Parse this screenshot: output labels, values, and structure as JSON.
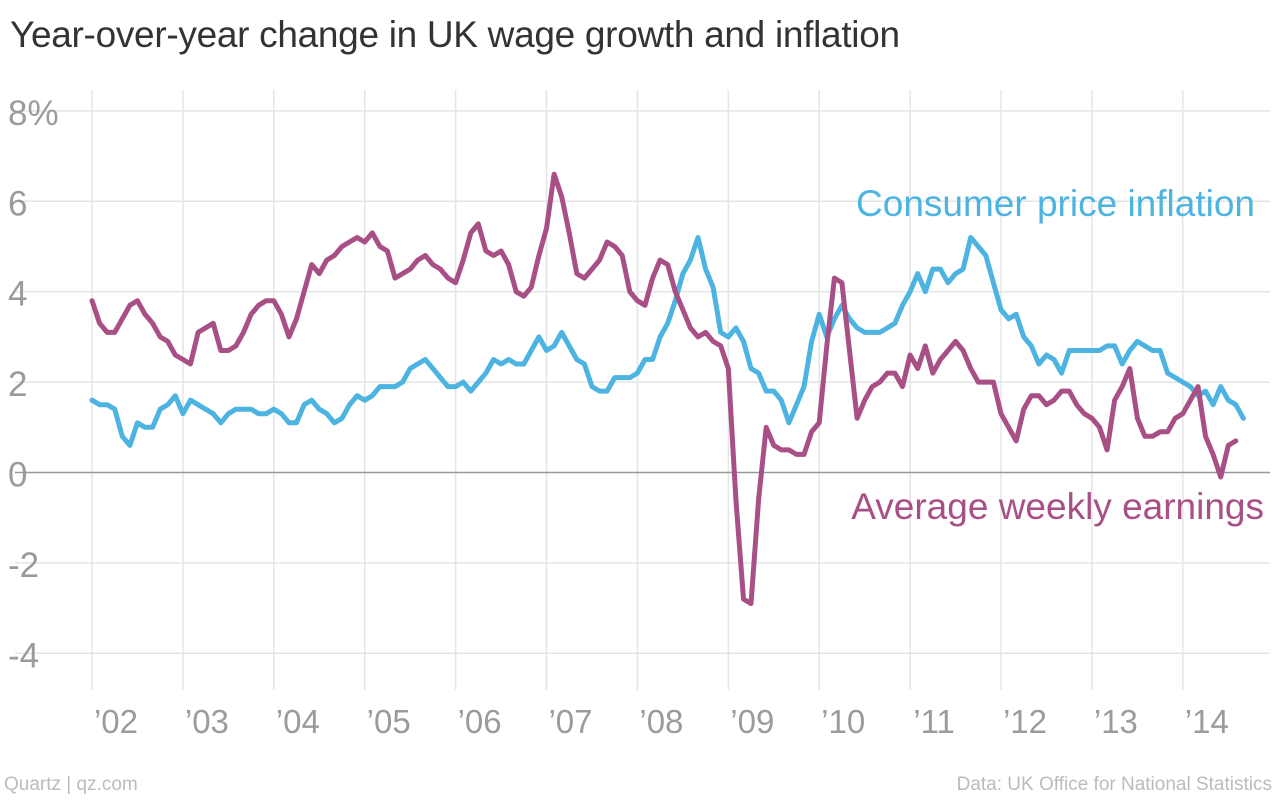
{
  "title": "Year-over-year change in UK wage growth and inflation",
  "source_left": "Quartz | qz.com",
  "source_right": "Data: UK Office for National Statistics",
  "colors": {
    "cpi": "#4db3e1",
    "awe": "#a84f86",
    "grid": "#e5e5e5",
    "zero": "#999999",
    "tick": "#9b9b9b"
  },
  "chart_data": {
    "type": "line",
    "ylim": [
      -4.5,
      8.5
    ],
    "xlim": [
      2001.9,
      2014.85
    ],
    "yticks": [
      -4,
      -2,
      0,
      2,
      4,
      6,
      8
    ],
    "ytick_labels": [
      "-4",
      "-2",
      "0",
      "2",
      "4",
      "6",
      "8%"
    ],
    "xticks": [
      2002,
      2003,
      2004,
      2005,
      2006,
      2007,
      2008,
      2009,
      2010,
      2011,
      2012,
      2013,
      2014
    ],
    "xtick_labels": [
      "’02",
      "’03",
      "’04",
      "’05",
      "’06",
      "’07",
      "’08",
      "’09",
      "’10",
      "’11",
      "’12",
      "’13",
      "’14"
    ],
    "grid": true,
    "series": [
      {
        "name": "Consumer price inflation",
        "key": "cpi",
        "x_start": "2002-01",
        "interval": "month",
        "values": [
          1.6,
          1.5,
          1.5,
          1.4,
          0.8,
          0.6,
          1.1,
          1.0,
          1.0,
          1.4,
          1.5,
          1.7,
          1.3,
          1.6,
          1.5,
          1.4,
          1.3,
          1.1,
          1.3,
          1.4,
          1.4,
          1.4,
          1.3,
          1.3,
          1.4,
          1.3,
          1.1,
          1.1,
          1.5,
          1.6,
          1.4,
          1.3,
          1.1,
          1.2,
          1.5,
          1.7,
          1.6,
          1.7,
          1.9,
          1.9,
          1.9,
          2.0,
          2.3,
          2.4,
          2.5,
          2.3,
          2.1,
          1.9,
          1.9,
          2.0,
          1.8,
          2.0,
          2.2,
          2.5,
          2.4,
          2.5,
          2.4,
          2.4,
          2.7,
          3.0,
          2.7,
          2.8,
          3.1,
          2.8,
          2.5,
          2.4,
          1.9,
          1.8,
          1.8,
          2.1,
          2.1,
          2.1,
          2.2,
          2.5,
          2.5,
          3.0,
          3.3,
          3.8,
          4.4,
          4.7,
          5.2,
          4.5,
          4.1,
          3.1,
          3.0,
          3.2,
          2.9,
          2.3,
          2.2,
          1.8,
          1.8,
          1.6,
          1.1,
          1.5,
          1.9,
          2.9,
          3.5,
          3.0,
          3.4,
          3.7,
          3.4,
          3.2,
          3.1,
          3.1,
          3.1,
          3.2,
          3.3,
          3.7,
          4.0,
          4.4,
          4.0,
          4.5,
          4.5,
          4.2,
          4.4,
          4.5,
          5.2,
          5.0,
          4.8,
          4.2,
          3.6,
          3.4,
          3.5,
          3.0,
          2.8,
          2.4,
          2.6,
          2.5,
          2.2,
          2.7,
          2.7,
          2.7,
          2.7,
          2.7,
          2.8,
          2.8,
          2.4,
          2.7,
          2.9,
          2.8,
          2.7,
          2.7,
          2.2,
          2.1,
          2.0,
          1.9,
          1.7,
          1.8,
          1.5,
          1.9,
          1.6,
          1.5,
          1.2
        ]
      },
      {
        "name": "Average weekly earnings",
        "key": "awe",
        "x_start": "2002-01",
        "interval": "month",
        "values": [
          3.8,
          3.3,
          3.1,
          3.1,
          3.4,
          3.7,
          3.8,
          3.5,
          3.3,
          3.0,
          2.9,
          2.6,
          2.5,
          2.4,
          3.1,
          3.2,
          3.3,
          2.7,
          2.7,
          2.8,
          3.1,
          3.5,
          3.7,
          3.8,
          3.8,
          3.5,
          3.0,
          3.4,
          4.0,
          4.6,
          4.4,
          4.7,
          4.8,
          5.0,
          5.1,
          5.2,
          5.1,
          5.3,
          5.0,
          4.9,
          4.3,
          4.4,
          4.5,
          4.7,
          4.8,
          4.6,
          4.5,
          4.3,
          4.2,
          4.7,
          5.3,
          5.5,
          4.9,
          4.8,
          4.9,
          4.6,
          4.0,
          3.9,
          4.1,
          4.8,
          5.4,
          6.6,
          6.1,
          5.3,
          4.4,
          4.3,
          4.5,
          4.7,
          5.1,
          5.0,
          4.8,
          4.0,
          3.8,
          3.7,
          4.3,
          4.7,
          4.6,
          4.0,
          3.6,
          3.2,
          3.0,
          3.1,
          2.9,
          2.8,
          2.3,
          -0.6,
          -2.8,
          -2.9,
          -0.6,
          1.0,
          0.6,
          0.5,
          0.5,
          0.4,
          0.4,
          0.9,
          1.1,
          2.8,
          4.3,
          4.2,
          2.7,
          1.2,
          1.6,
          1.9,
          2.0,
          2.2,
          2.2,
          1.9,
          2.6,
          2.3,
          2.8,
          2.2,
          2.5,
          2.7,
          2.9,
          2.7,
          2.3,
          2.0,
          2.0,
          2.0,
          1.3,
          1.0,
          0.7,
          1.4,
          1.7,
          1.7,
          1.5,
          1.6,
          1.8,
          1.8,
          1.5,
          1.3,
          1.2,
          1.0,
          0.5,
          1.6,
          1.9,
          2.3,
          1.2,
          0.8,
          0.8,
          0.9,
          0.9,
          1.2,
          1.3,
          1.6,
          1.9,
          0.8,
          0.4,
          -0.1,
          0.6,
          0.7
        ]
      }
    ],
    "annotations": [
      {
        "text": "Consumer price inflation",
        "series": "cpi"
      },
      {
        "text": "Average weekly earnings",
        "series": "awe"
      }
    ]
  }
}
